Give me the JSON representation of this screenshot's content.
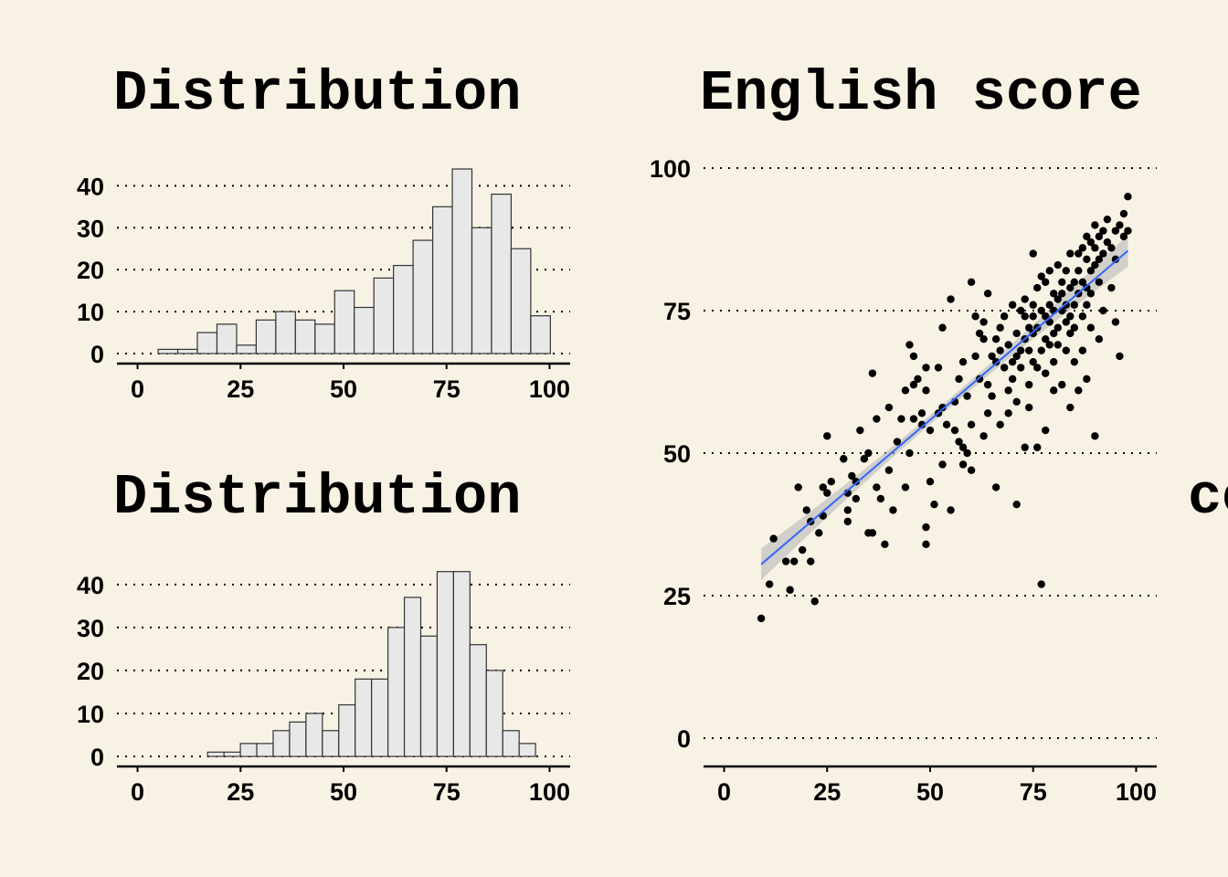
{
  "colors": {
    "background": "#f8f2e4",
    "bar_fill": "#e8e8e8",
    "bar_stroke": "#333333",
    "point": "#000000",
    "fit_line": "#3366ff",
    "ci_band": "#b8b8b8"
  },
  "chart_data": [
    {
      "type": "bar",
      "title": "Distribution",
      "xlim": [
        -5,
        105
      ],
      "ylim": [
        0,
        44
      ],
      "x_ticks": [
        "0",
        "25",
        "50",
        "75",
        "100"
      ],
      "y_ticks": [
        "0",
        "10",
        "20",
        "30",
        "40"
      ],
      "grid": "horizontal-dotted",
      "bin_width": 4.76,
      "bin_start": 5.0,
      "values": [
        1,
        1,
        5,
        7,
        2,
        8,
        10,
        8,
        7,
        15,
        11,
        18,
        21,
        27,
        35,
        44,
        30,
        38,
        25,
        9
      ]
    },
    {
      "type": "bar",
      "title": "Distribution",
      "title_tail": "co",
      "xlim": [
        -5,
        105
      ],
      "ylim": [
        0,
        44
      ],
      "x_ticks": [
        "0",
        "25",
        "50",
        "75",
        "100"
      ],
      "y_ticks": [
        "0",
        "10",
        "20",
        "30",
        "40"
      ],
      "grid": "horizontal-dotted",
      "bin_width": 3.98,
      "bin_start": 17.0,
      "values": [
        1,
        1,
        3,
        3,
        6,
        8,
        10,
        6,
        12,
        18,
        18,
        30,
        37,
        28,
        43,
        43,
        26,
        20,
        6,
        3
      ]
    },
    {
      "type": "scatter",
      "title": "English score",
      "xlim": [
        -5,
        105
      ],
      "ylim": [
        -5,
        100
      ],
      "x_ticks": [
        "0",
        "25",
        "50",
        "75",
        "100"
      ],
      "y_ticks": [
        "0",
        "25",
        "50",
        "75",
        "100"
      ],
      "grid": "horizontal-dotted",
      "fit": {
        "method": "linear",
        "x": [
          9,
          98
        ],
        "y": [
          30.5,
          85.5
        ],
        "ci_halfwidth_ends": 2.8,
        "ci_halfwidth_mid": 0.8
      },
      "points": [
        [
          9,
          21
        ],
        [
          11,
          27
        ],
        [
          15,
          31
        ],
        [
          16,
          26
        ],
        [
          17,
          31
        ],
        [
          18,
          44
        ],
        [
          19,
          33
        ],
        [
          20,
          40
        ],
        [
          21,
          31
        ],
        [
          21,
          38
        ],
        [
          22,
          24
        ],
        [
          23,
          36
        ],
        [
          24,
          39
        ],
        [
          24,
          44
        ],
        [
          25,
          43
        ],
        [
          25,
          53
        ],
        [
          29,
          49
        ],
        [
          30,
          38
        ],
        [
          30,
          43
        ],
        [
          31,
          46
        ],
        [
          32,
          42
        ],
        [
          32,
          45
        ],
        [
          33,
          54
        ],
        [
          34,
          49
        ],
        [
          35,
          36
        ],
        [
          35,
          50
        ],
        [
          36,
          64
        ],
        [
          36,
          36
        ],
        [
          37,
          56
        ],
        [
          37,
          44
        ],
        [
          38,
          42
        ],
        [
          39,
          34
        ],
        [
          40,
          47
        ],
        [
          40,
          58
        ],
        [
          41,
          40
        ],
        [
          42,
          52
        ],
        [
          43,
          56
        ],
        [
          44,
          61
        ],
        [
          45,
          69
        ],
        [
          45,
          50
        ],
        [
          46,
          56
        ],
        [
          46,
          62
        ],
        [
          47,
          63
        ],
        [
          48,
          55
        ],
        [
          48,
          57
        ],
        [
          49,
          61
        ],
        [
          49,
          65
        ],
        [
          49,
          34
        ],
        [
          49,
          37
        ],
        [
          50,
          45
        ],
        [
          50,
          54
        ],
        [
          51,
          41
        ],
        [
          52,
          57
        ],
        [
          52,
          65
        ],
        [
          53,
          72
        ],
        [
          53,
          58
        ],
        [
          54,
          55
        ],
        [
          55,
          40
        ],
        [
          55,
          77
        ],
        [
          56,
          59
        ],
        [
          56,
          54
        ],
        [
          57,
          63
        ],
        [
          57,
          52
        ],
        [
          58,
          51
        ],
        [
          58,
          66
        ],
        [
          59,
          60
        ],
        [
          59,
          50
        ],
        [
          60,
          80
        ],
        [
          60,
          55
        ],
        [
          61,
          67
        ],
        [
          61,
          74
        ],
        [
          62,
          71
        ],
        [
          63,
          70
        ],
        [
          63,
          53
        ],
        [
          63,
          73
        ],
        [
          64,
          78
        ],
        [
          64,
          62
        ],
        [
          65,
          67
        ],
        [
          65,
          60
        ],
        [
          66,
          70
        ],
        [
          66,
          66
        ],
        [
          67,
          68
        ],
        [
          67,
          72
        ],
        [
          67,
          55
        ],
        [
          68,
          74
        ],
        [
          68,
          65
        ],
        [
          69,
          69
        ],
        [
          69,
          61
        ],
        [
          69,
          57
        ],
        [
          70,
          76
        ],
        [
          70,
          66
        ],
        [
          70,
          63
        ],
        [
          71,
          71
        ],
        [
          71,
          67
        ],
        [
          71,
          59
        ],
        [
          71,
          41
        ],
        [
          72,
          75
        ],
        [
          72,
          65
        ],
        [
          72,
          68
        ],
        [
          73,
          74
        ],
        [
          73,
          77
        ],
        [
          73,
          70
        ],
        [
          73,
          51
        ],
        [
          74,
          72
        ],
        [
          74,
          68
        ],
        [
          74,
          62
        ],
        [
          74,
          58
        ],
        [
          75,
          76
        ],
        [
          75,
          71
        ],
        [
          75,
          74
        ],
        [
          75,
          66
        ],
        [
          75,
          85
        ],
        [
          76,
          72
        ],
        [
          76,
          79
        ],
        [
          76,
          65
        ],
        [
          77,
          75
        ],
        [
          77,
          68
        ],
        [
          77,
          81
        ],
        [
          77,
          27
        ],
        [
          78,
          70
        ],
        [
          78,
          80
        ],
        [
          78,
          74
        ],
        [
          78,
          64
        ],
        [
          78,
          54
        ],
        [
          79,
          76
        ],
        [
          79,
          73
        ],
        [
          79,
          82
        ],
        [
          79,
          69
        ],
        [
          80,
          78
        ],
        [
          80,
          75
        ],
        [
          80,
          71
        ],
        [
          80,
          66
        ],
        [
          80,
          61
        ],
        [
          81,
          83
        ],
        [
          81,
          77
        ],
        [
          81,
          72
        ],
        [
          81,
          69
        ],
        [
          82,
          80
        ],
        [
          82,
          75
        ],
        [
          82,
          78
        ],
        [
          82,
          62
        ],
        [
          83,
          73
        ],
        [
          83,
          76
        ],
        [
          83,
          82
        ],
        [
          83,
          68
        ],
        [
          84,
          85
        ],
        [
          84,
          79
        ],
        [
          84,
          74
        ],
        [
          84,
          71
        ],
        [
          85,
          80
        ],
        [
          85,
          76
        ],
        [
          85,
          72
        ],
        [
          85,
          66
        ],
        [
          86,
          85
        ],
        [
          86,
          82
        ],
        [
          86,
          78
        ],
        [
          86,
          61
        ],
        [
          87,
          86
        ],
        [
          87,
          80
        ],
        [
          87,
          74
        ],
        [
          87,
          68
        ],
        [
          88,
          88
        ],
        [
          88,
          84
        ],
        [
          88,
          79
        ],
        [
          88,
          76
        ],
        [
          89,
          87
        ],
        [
          89,
          82
        ],
        [
          89,
          78
        ],
        [
          89,
          72
        ],
        [
          90,
          86
        ],
        [
          90,
          83
        ],
        [
          90,
          53
        ],
        [
          90,
          90
        ],
        [
          91,
          88
        ],
        [
          91,
          84
        ],
        [
          91,
          80
        ],
        [
          92,
          89
        ],
        [
          92,
          85
        ],
        [
          92,
          75
        ],
        [
          93,
          91
        ],
        [
          93,
          87
        ],
        [
          94,
          86
        ],
        [
          94,
          79
        ],
        [
          95,
          89
        ],
        [
          95,
          84
        ],
        [
          95,
          73
        ],
        [
          96,
          90
        ],
        [
          96,
          67
        ],
        [
          97,
          88
        ],
        [
          97,
          92
        ],
        [
          98,
          89
        ],
        [
          98,
          95
        ],
        [
          12,
          35
        ],
        [
          26,
          45
        ],
        [
          30,
          40
        ],
        [
          44,
          44
        ],
        [
          53,
          48
        ],
        [
          60,
          47
        ],
        [
          64,
          57
        ],
        [
          66,
          44
        ],
        [
          76,
          51
        ],
        [
          84,
          58
        ],
        [
          88,
          63
        ],
        [
          91,
          70
        ],
        [
          62,
          63
        ],
        [
          58,
          48
        ],
        [
          46,
          67
        ]
      ]
    }
  ]
}
